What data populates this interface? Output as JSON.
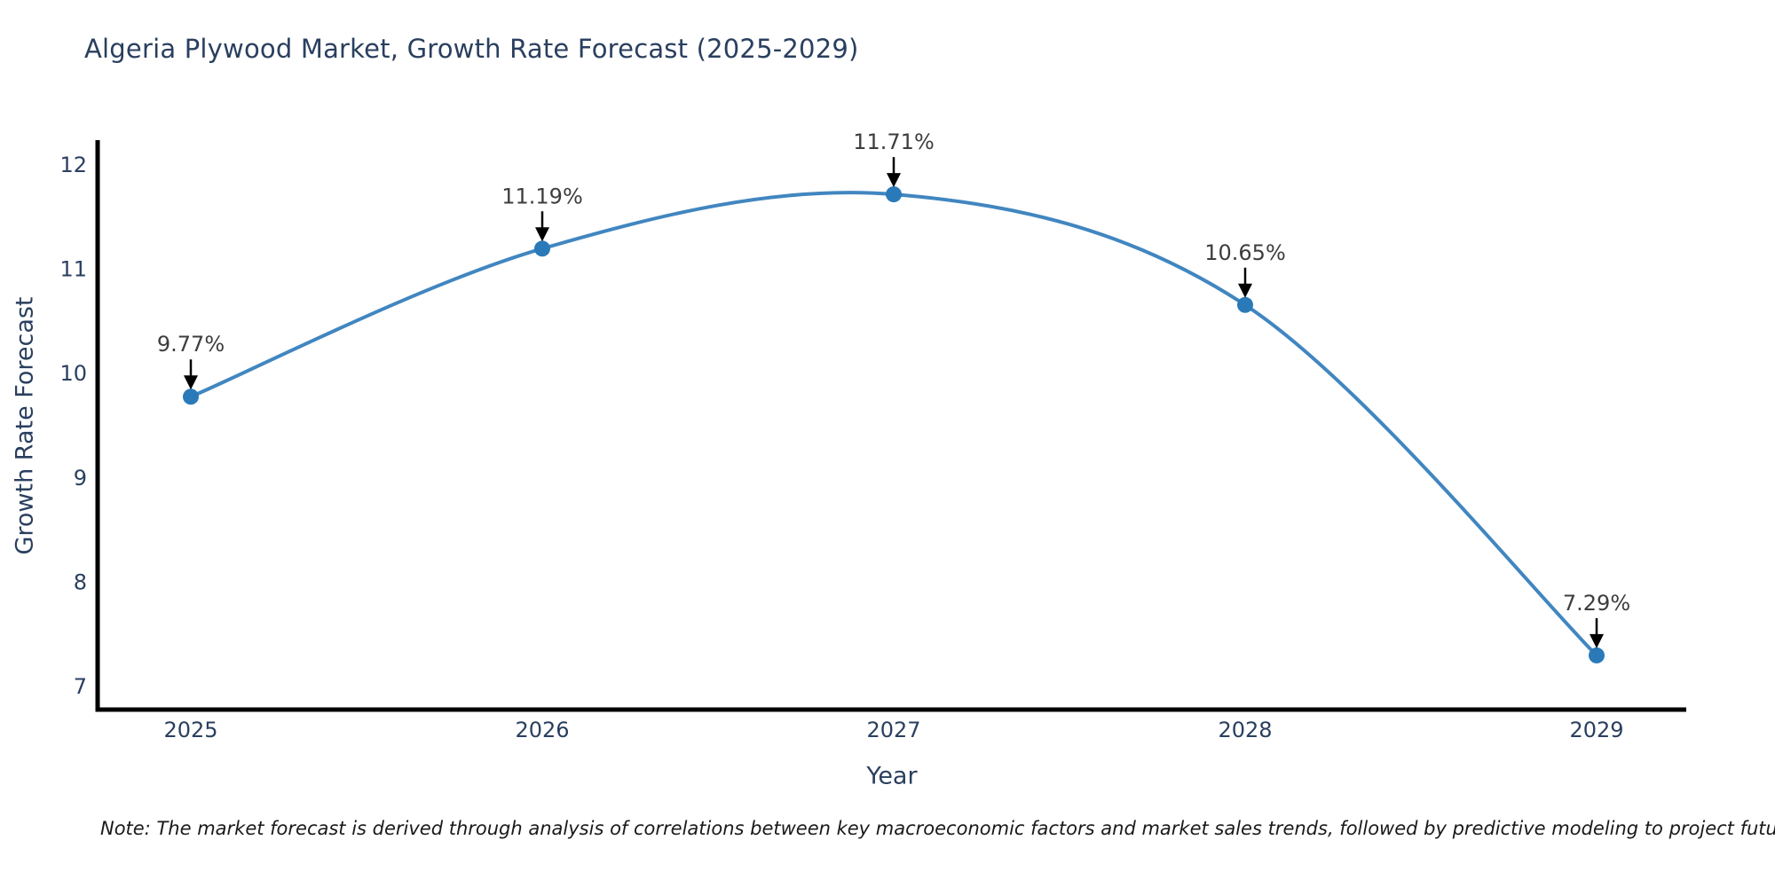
{
  "title": "Algeria Plywood Market, Growth Rate Forecast (2025-2029)",
  "footnote": "Note: The market forecast is derived through analysis of correlations between key macroeconomic factors and market sales trends, followed by predictive modeling to project future sales",
  "chart_data": {
    "type": "line",
    "title": "Algeria Plywood Market, Growth Rate Forecast (2025-2029)",
    "xlabel": "Year",
    "ylabel": "Growth Rate Forecast",
    "categories": [
      "2025",
      "2026",
      "2027",
      "2028",
      "2029"
    ],
    "series": [
      {
        "name": "Growth Rate Forecast",
        "values": [
          9.77,
          11.19,
          11.71,
          10.65,
          7.29
        ],
        "data_labels": [
          "9.77%",
          "11.19%",
          "11.71%",
          "10.65%",
          "7.29%"
        ]
      }
    ],
    "yticks": [
      7,
      8,
      9,
      10,
      11,
      12
    ],
    "ylim": [
      6.8,
      12.2
    ],
    "grid": false,
    "legend": "none",
    "smooth": true,
    "colors": {
      "line": "#4186c0",
      "marker": "#2a7ab9",
      "arrow": "#000000",
      "annotation_text": "#3d3d3d",
      "tick_text": "#2a3f5f",
      "spine": "#000000"
    }
  }
}
